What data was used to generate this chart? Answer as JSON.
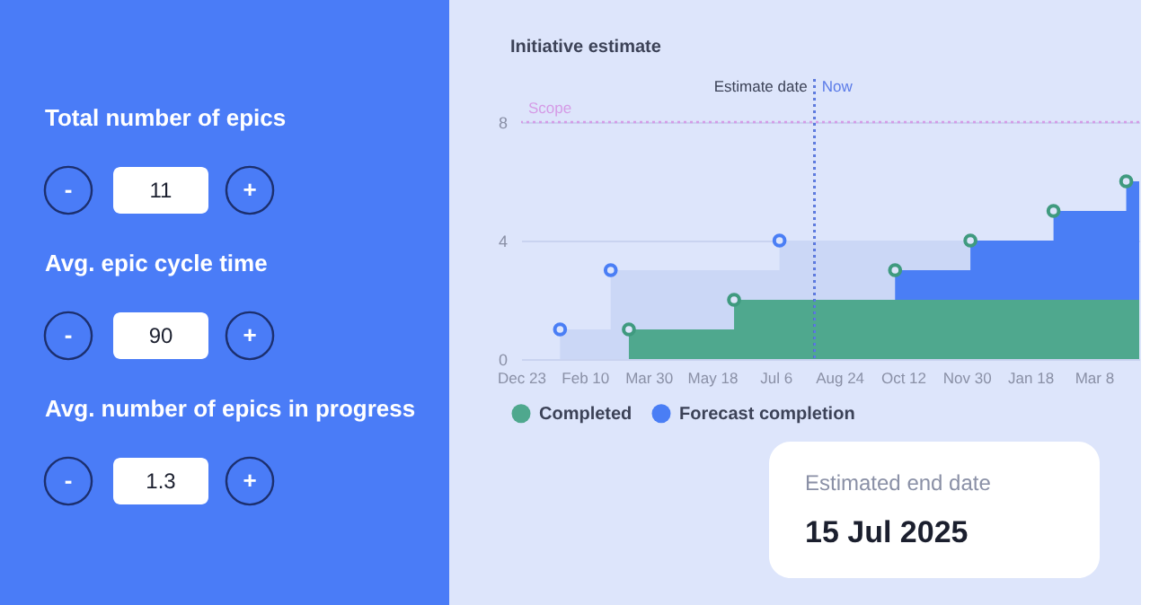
{
  "chart_data": [
    {
      "type": "other",
      "annotations": [
        "Total number of epics",
        "-",
        "11",
        "+",
        "Avg. epic cycle time",
        "-",
        "90",
        "+",
        "Avg. number of epics in progress",
        "-",
        "1.3",
        "+"
      ]
    },
    {
      "type": "area",
      "title": "Initiative estimate",
      "xlim": [
        "2023-12-23",
        "2025-04-12"
      ],
      "xticks": [
        {
          "value": "2023-12-23",
          "label": "Dec 23"
        },
        {
          "value": "2024-02-10",
          "label": "Feb 10"
        },
        {
          "value": "2024-03-30",
          "label": "Mar 30"
        },
        {
          "value": "2024-05-18",
          "label": "May 18"
        },
        {
          "value": "2024-07-06",
          "label": "Jul 6"
        },
        {
          "value": "2024-08-24",
          "label": "Aug 24"
        },
        {
          "value": "2024-10-12",
          "label": "Oct 12"
        },
        {
          "value": "2024-11-30",
          "label": "Nov 30"
        },
        {
          "value": "2025-01-18",
          "label": "Jan 18"
        },
        {
          "value": "2025-03-08",
          "label": "Mar 8"
        }
      ],
      "ylim": [
        0,
        8
      ],
      "yticks": [
        0,
        4,
        8
      ],
      "grid": "y",
      "legend": "bottom",
      "series": [
        {
          "type": "area",
          "name": "Completed",
          "color": "#4fa88e",
          "x": [
            "2024-03-15",
            "2024-06-04",
            "2025-04-12"
          ],
          "values": [
            1,
            2,
            2
          ]
        },
        {
          "type": "area",
          "name": "Forecast completion",
          "color": "#4a7ef5",
          "x": [
            "2024-10-06",
            "2024-12-03",
            "2025-02-05",
            "2025-04-02",
            "2025-04-12"
          ],
          "values": [
            3,
            4,
            5,
            6,
            6
          ]
        },
        {
          "type": "area",
          "color": "#cbd7f6",
          "x": [
            "2024-01-22",
            "2024-03-01",
            "2024-07-09",
            "2025-04-12"
          ],
          "values": [
            1,
            3,
            4,
            4
          ]
        },
        {
          "type": "scatter",
          "marker": "circle",
          "color": "#4a7ef5",
          "x": [
            "2024-01-22",
            "2024-03-01",
            "2024-07-09"
          ],
          "values": [
            1,
            3,
            4
          ]
        },
        {
          "type": "scatter",
          "marker": "circle",
          "color": "#3f9a7f",
          "x": [
            "2024-03-15",
            "2024-06-04",
            "2024-10-06",
            "2024-12-03",
            "2025-02-05",
            "2025-04-02"
          ],
          "values": [
            1,
            2,
            3,
            4,
            5,
            6
          ]
        }
      ],
      "ref_lines": [
        {
          "axis": "y",
          "value": 8,
          "label": "Scope",
          "color": "#d59be6",
          "line_style": "dotted"
        },
        {
          "axis": "x",
          "value": "2024-08-05",
          "label": "Estimate date",
          "color": "#3c4257",
          "line_style": "dotted"
        },
        {
          "axis": "x",
          "value": "2024-08-05",
          "label": "Now",
          "color": "#5b7be8",
          "line_style": "dotted"
        }
      ],
      "annotations": [
        "Estimated end date",
        "15 Jul 2025"
      ]
    }
  ]
}
